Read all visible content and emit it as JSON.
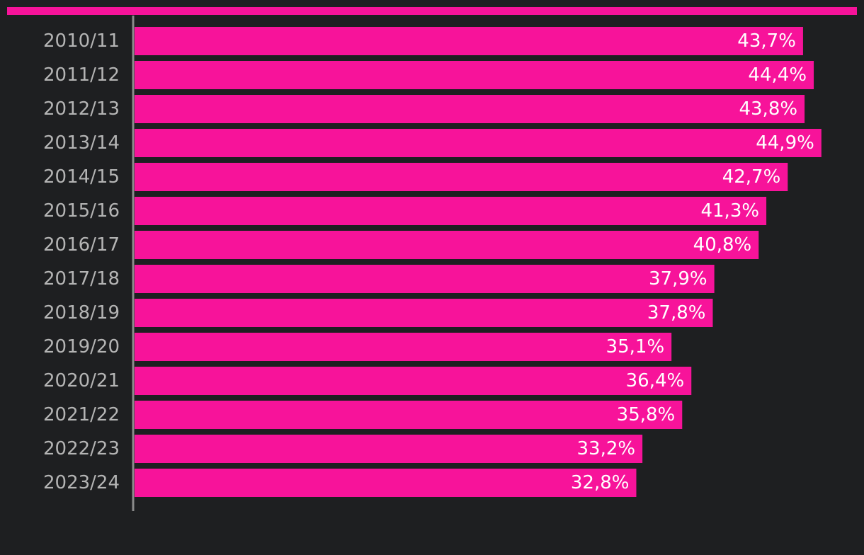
{
  "colors": {
    "background": "#1e1f21",
    "bar": "#f7139a",
    "top_rule": "#f7139a",
    "axis_line": "#8a8a8a",
    "category_label": "#b4b4b4",
    "value_label": "#ffffff"
  },
  "chart_data": {
    "type": "bar",
    "orientation": "horizontal",
    "categories": [
      "2010/11",
      "2011/12",
      "2012/13",
      "2013/14",
      "2014/15",
      "2015/16",
      "2016/17",
      "2017/18",
      "2018/19",
      "2019/20",
      "2020/21",
      "2021/22",
      "2022/23",
      "2023/24"
    ],
    "values": [
      43.7,
      44.4,
      43.8,
      44.9,
      42.7,
      41.3,
      40.8,
      37.9,
      37.8,
      35.1,
      36.4,
      35.8,
      33.2,
      32.8
    ],
    "value_labels": [
      "43,7%",
      "44,4%",
      "43,8%",
      "44,9%",
      "42,7%",
      "41,3%",
      "40,8%",
      "37,9%",
      "37,8%",
      "35,1%",
      "36,4%",
      "35,8%",
      "33,2%",
      "32,8%"
    ],
    "unit": "%",
    "title": "",
    "xlabel": "",
    "ylabel": "",
    "xlim": [
      0,
      45.4
    ],
    "grid": false,
    "legend": "none"
  }
}
